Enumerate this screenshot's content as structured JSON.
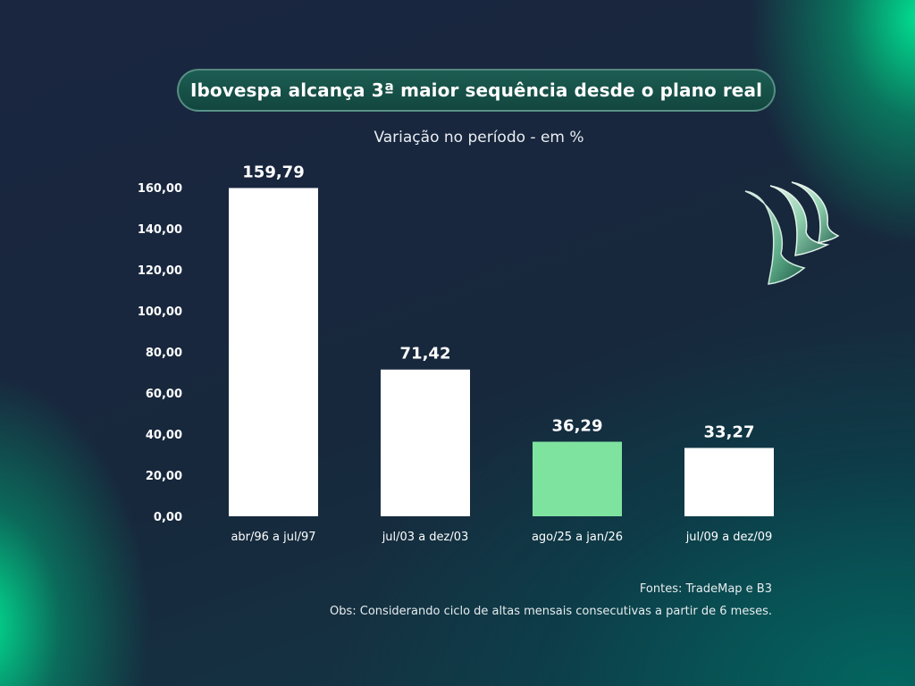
{
  "title": "Ibovespa alcança 3ª maior sequência desde o plano real",
  "subtitle": "Variação no período - em %",
  "footer": {
    "sources": "Fontes: TradeMap e B3",
    "note": "Obs: Considerando ciclo de altas mensais consecutivas a partir de 6 meses."
  },
  "colors": {
    "bar_default": "#ffffff",
    "bar_highlight": "#7fe3a0",
    "title_bg": "#1a5a50"
  },
  "chart_data": {
    "type": "bar",
    "categories": [
      "abr/96 a jul/97",
      "jul/03 a dez/03",
      "ago/25 a jan/26",
      "jul/09 a dez/09"
    ],
    "values": [
      159.79,
      71.42,
      36.29,
      33.27
    ],
    "value_labels": [
      "159,79",
      "71,42",
      "36,29",
      "33,27"
    ],
    "highlight_index": 2,
    "ylim": [
      0,
      160
    ],
    "yticks": [
      "0,00",
      "20,00",
      "40,00",
      "60,00",
      "80,00",
      "100,00",
      "120,00",
      "140,00",
      "160,00"
    ],
    "grid": false,
    "xlabel": "",
    "ylabel": ""
  }
}
